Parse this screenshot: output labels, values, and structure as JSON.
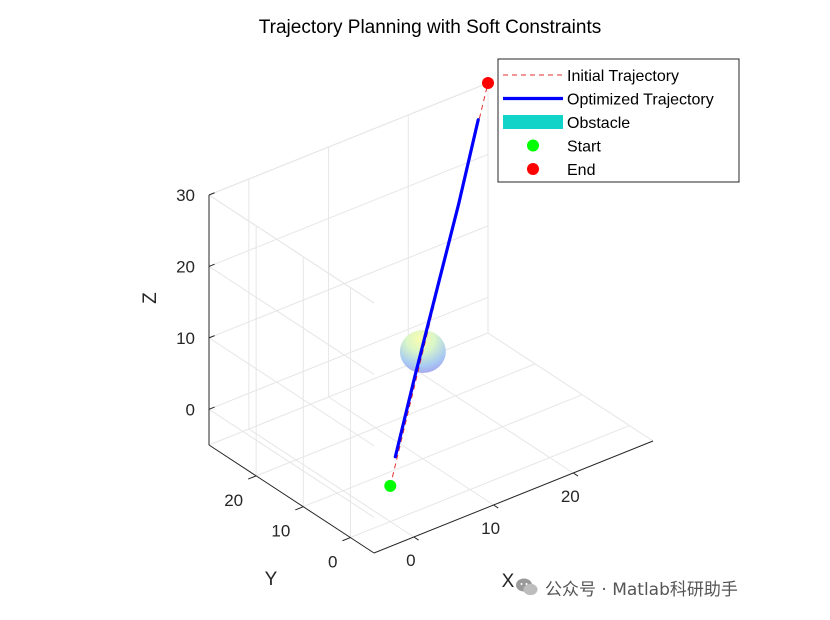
{
  "chart_data": {
    "type": "3d-line",
    "title": "Trajectory Planning with Soft Constraints",
    "xlabel": "X",
    "ylabel": "Y",
    "zlabel": "Z",
    "xlim": [
      -5,
      30
    ],
    "ylim": [
      -5,
      30
    ],
    "zlim": [
      -5,
      30
    ],
    "xticks": [
      0,
      10,
      20
    ],
    "yticks": [
      0,
      10,
      20
    ],
    "zticks": [
      0,
      10,
      20,
      30
    ],
    "grid": true,
    "legend_location": "top-right",
    "legend": [
      {
        "label": "Initial Trajectory",
        "style": "dashed-line",
        "color": "#e03030"
      },
      {
        "label": "Optimized Trajectory",
        "style": "solid-line",
        "color": "#0000ff"
      },
      {
        "label": "Obstacle",
        "style": "patch",
        "color": "#12d3c8"
      },
      {
        "label": "Start",
        "style": "marker",
        "color": "#00ff00"
      },
      {
        "label": "End",
        "style": "marker",
        "color": "#ff0000"
      }
    ],
    "series": [
      {
        "name": "Initial Trajectory",
        "points": [
          [
            0,
            0,
            0
          ],
          [
            30,
            30,
            30
          ]
        ]
      },
      {
        "name": "Optimized Trajectory",
        "points": [
          [
            3,
            4,
            1
          ],
          [
            9,
            10,
            7
          ],
          [
            15,
            15.5,
            14
          ],
          [
            21,
            21,
            21
          ],
          [
            27,
            27,
            27.5
          ]
        ]
      }
    ],
    "obstacle": {
      "center": [
        10,
        10,
        10
      ],
      "radius": 3
    },
    "start": [
      0,
      0,
      0
    ],
    "end": [
      30,
      30,
      30
    ]
  },
  "watermark": {
    "text": "公众号 · Matlab科研助手"
  }
}
